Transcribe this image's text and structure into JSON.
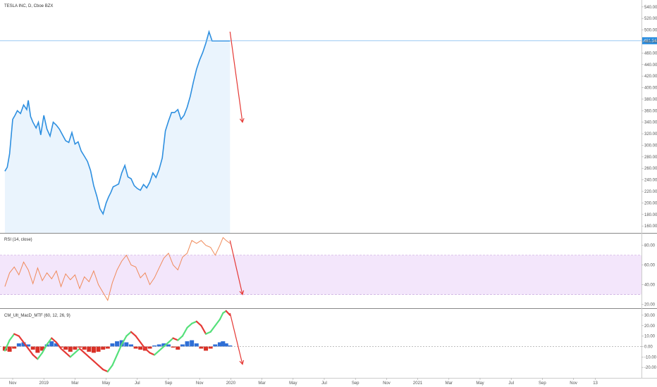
{
  "colors": {
    "price": "#2d8fe0",
    "price_fill": "#eaf4fd",
    "price_line": "#74b6ef",
    "price_badge": "#2d8fe0",
    "rsi": "#f08a5a",
    "rsi_band": "#f3e6fb",
    "arrow": "#e53935",
    "macd_up": "#55e07a",
    "macd_down": "#e53935",
    "hist_pos": "#2f6fd6",
    "hist_neg": "#d93026",
    "axis_text": "#555555",
    "separator": "#888888"
  },
  "header": {
    "price_title": "TESLA INC, D, Cboe BZX",
    "rsi_title": "RSI (14, close)",
    "macd_title": "CM_Ult_MacD_MTF (60, 12, 26, 9)"
  },
  "price_axis_labels": [
    "540.00",
    "520.00",
    "500.00",
    "480.00",
    "460.00",
    "440.00",
    "420.00",
    "400.00",
    "380.00",
    "360.00",
    "340.00",
    "320.00",
    "300.00",
    "280.00",
    "260.00",
    "240.00",
    "220.00",
    "200.00",
    "180.00",
    "160.00"
  ],
  "price_axis_values": [
    540,
    520,
    500,
    480,
    460,
    440,
    420,
    400,
    380,
    360,
    340,
    320,
    300,
    280,
    260,
    240,
    220,
    200,
    180,
    160
  ],
  "current_price": {
    "value": 481.34,
    "label": "481.34"
  },
  "rsi_axis_labels": [
    "80.00",
    "60.00",
    "40.00",
    "20.00"
  ],
  "rsi_axis_values": [
    80,
    60,
    40,
    20
  ],
  "macd_axis_labels": [
    "30.00",
    "20.00",
    "10.00",
    "0.00",
    "-10.00",
    "-20.00"
  ],
  "macd_axis_values": [
    30,
    20,
    10,
    0,
    -10,
    -20
  ],
  "time_axis": [
    {
      "label": "Nov",
      "m": 0.0
    },
    {
      "label": "2019",
      "m": 2.0
    },
    {
      "label": "Mar",
      "m": 4.0
    },
    {
      "label": "May",
      "m": 6.0
    },
    {
      "label": "Jul",
      "m": 8.0
    },
    {
      "label": "Sep",
      "m": 10.0
    },
    {
      "label": "Nov",
      "m": 12.0
    },
    {
      "label": "2020",
      "m": 14.0
    },
    {
      "label": "Mar",
      "m": 16.0
    },
    {
      "label": "May",
      "m": 18.0
    },
    {
      "label": "Jul",
      "m": 20.0
    },
    {
      "label": "Sep",
      "m": 22.0
    },
    {
      "label": "Nov",
      "m": 24.0
    },
    {
      "label": "2021",
      "m": 26.0
    },
    {
      "label": "Mar",
      "m": 28.0
    },
    {
      "label": "May",
      "m": 30.0
    },
    {
      "label": "Jul",
      "m": 32.0
    },
    {
      "label": "Sep",
      "m": 34.0
    },
    {
      "label": "Nov",
      "m": 36.0
    },
    {
      "label": "13",
      "m": 37.4
    }
  ],
  "chart_data": {
    "type": "line",
    "x_unit": "months since Nov 2018 axis label",
    "price": {
      "ylim": [
        148,
        552
      ],
      "x": [
        -0.5,
        -0.35,
        -0.2,
        0.0,
        0.15,
        0.3,
        0.5,
        0.7,
        0.9,
        1.0,
        1.15,
        1.3,
        1.5,
        1.65,
        1.8,
        2.0,
        2.2,
        2.4,
        2.6,
        2.8,
        3.0,
        3.2,
        3.4,
        3.6,
        3.8,
        4.0,
        4.2,
        4.4,
        4.6,
        4.8,
        5.0,
        5.2,
        5.4,
        5.6,
        5.8,
        6.0,
        6.15,
        6.3,
        6.45,
        6.6,
        6.8,
        7.0,
        7.2,
        7.4,
        7.6,
        7.8,
        8.0,
        8.2,
        8.4,
        8.6,
        8.8,
        9.0,
        9.2,
        9.4,
        9.6,
        9.8,
        10.0,
        10.2,
        10.4,
        10.6,
        10.8,
        11.0,
        11.2,
        11.4,
        11.6,
        11.8,
        12.0,
        12.2,
        12.4,
        12.6,
        12.8,
        13.0,
        13.2,
        13.4,
        13.6,
        13.8,
        13.95
      ],
      "y": [
        255,
        262,
        285,
        345,
        352,
        360,
        355,
        370,
        362,
        378,
        350,
        340,
        330,
        340,
        318,
        352,
        328,
        316,
        340,
        335,
        328,
        318,
        308,
        305,
        322,
        302,
        306,
        290,
        281,
        272,
        256,
        230,
        212,
        190,
        181,
        200,
        210,
        218,
        228,
        230,
        233,
        252,
        265,
        245,
        242,
        230,
        225,
        222,
        232,
        226,
        236,
        252,
        244,
        258,
        278,
        325,
        342,
        357,
        357,
        362,
        345,
        352,
        366,
        385,
        410,
        432,
        448,
        461,
        477,
        497,
        481,
        481,
        481,
        481,
        481,
        481,
        481
      ]
    },
    "rsi": {
      "ylim": [
        16,
        92
      ],
      "x": [
        -0.5,
        -0.2,
        0.1,
        0.4,
        0.7,
        1.0,
        1.3,
        1.6,
        1.9,
        2.2,
        2.5,
        2.8,
        3.1,
        3.4,
        3.7,
        4.0,
        4.3,
        4.6,
        4.9,
        5.2,
        5.5,
        5.8,
        6.1,
        6.4,
        6.7,
        7.0,
        7.3,
        7.6,
        7.9,
        8.2,
        8.5,
        8.8,
        9.1,
        9.4,
        9.7,
        10.0,
        10.3,
        10.6,
        10.9,
        11.2,
        11.5,
        11.8,
        12.1,
        12.4,
        12.7,
        13.0,
        13.3,
        13.5,
        13.7,
        13.95
      ],
      "y": [
        38,
        52,
        58,
        50,
        63,
        55,
        41,
        57,
        44,
        52,
        46,
        54,
        38,
        51,
        45,
        50,
        36,
        48,
        43,
        54,
        40,
        32,
        24,
        42,
        55,
        64,
        70,
        60,
        58,
        47,
        52,
        40,
        47,
        57,
        67,
        72,
        60,
        55,
        68,
        72,
        85,
        82,
        85,
        80,
        78,
        70,
        80,
        88,
        85,
        82
      ]
    },
    "rsi_band": [
      30,
      70
    ],
    "macd": {
      "ylim": [
        -30,
        36
      ],
      "x": [
        -0.5,
        -0.2,
        0.1,
        0.4,
        0.7,
        1.0,
        1.3,
        1.6,
        1.9,
        2.2,
        2.5,
        2.8,
        3.1,
        3.4,
        3.7,
        4.0,
        4.3,
        4.6,
        4.9,
        5.2,
        5.5,
        5.8,
        6.1,
        6.4,
        6.7,
        7.0,
        7.3,
        7.6,
        7.9,
        8.2,
        8.5,
        8.8,
        9.1,
        9.4,
        9.7,
        10.0,
        10.3,
        10.6,
        10.9,
        11.2,
        11.5,
        11.8,
        12.1,
        12.4,
        12.7,
        13.0,
        13.3,
        13.5,
        13.7,
        13.95
      ],
      "y": [
        -4,
        6,
        12,
        10,
        4,
        -2,
        -8,
        -12,
        -6,
        2,
        8,
        4,
        -2,
        -6,
        -10,
        -6,
        -2,
        -6,
        -10,
        -14,
        -18,
        -22,
        -24,
        -18,
        -8,
        2,
        10,
        14,
        10,
        4,
        -2,
        -6,
        -8,
        -4,
        0,
        4,
        8,
        6,
        10,
        18,
        22,
        24,
        20,
        12,
        14,
        20,
        26,
        32,
        34,
        30
      ],
      "histogram": [
        -4,
        -5,
        -2,
        3,
        4,
        2,
        -3,
        -6,
        -4,
        2,
        5,
        3,
        -1,
        -3,
        -5,
        -3,
        -1,
        -3,
        -5,
        -6,
        -5,
        -3,
        -2,
        3,
        5,
        6,
        4,
        2,
        -2,
        -3,
        -4,
        -2,
        1,
        2,
        3,
        2,
        -1,
        -3,
        2,
        5,
        6,
        3,
        -2,
        -4,
        -2,
        2,
        4,
        5,
        3,
        1
      ]
    },
    "macd_arrow": {
      "from": [
        13.95,
        32
      ],
      "to": [
        14.75,
        -17
      ]
    },
    "rsi_arrow": {
      "from": [
        13.95,
        85
      ],
      "to": [
        14.75,
        30
      ]
    },
    "price_arrow": {
      "from": [
        13.95,
        497
      ],
      "to": [
        14.75,
        340
      ]
    }
  }
}
